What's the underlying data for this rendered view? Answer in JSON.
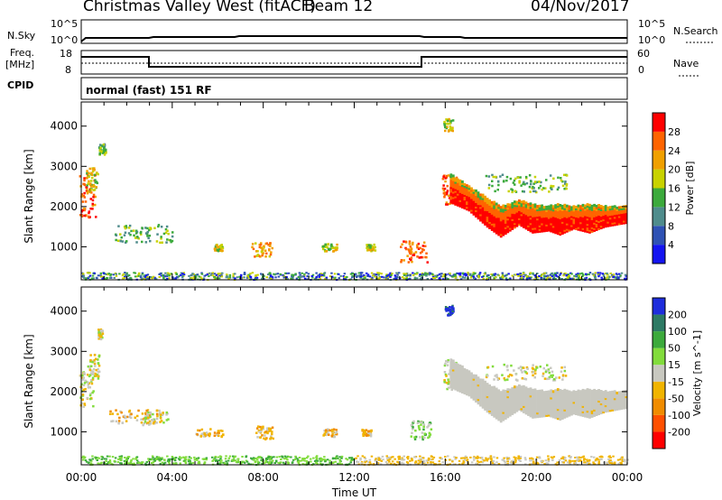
{
  "header": {
    "station": "Christmas Valley West (fitACF)",
    "beam": "Beam 12",
    "date": "04/Nov/2017"
  },
  "strips": {
    "nsky_label": "N.Sky",
    "nsky_ticks": [
      "10^5",
      "10^0"
    ],
    "nsearch_label": "N.Search",
    "freq_label": "Freq.",
    "freq_unit": "[MHz]",
    "freq_ticks": [
      "18",
      "8"
    ],
    "nave_label": "Nave",
    "nave_ticks": [
      "60",
      "0"
    ],
    "cpid_label": "CPID",
    "cpid_value": "normal (fast) 151 RF"
  },
  "chart_data": [
    {
      "type": "heatmap",
      "name": "power",
      "ylabel": "Slant Range [km]",
      "xlabel": "",
      "yticks": [
        1000,
        2000,
        3000,
        4000
      ],
      "ylim": [
        180,
        4600
      ],
      "xlim": [
        0,
        24
      ],
      "colorbar": {
        "label": "Power [dB]",
        "ticks": [
          "4",
          "8",
          "12",
          "16",
          "20",
          "24",
          "28"
        ]
      },
      "color_hex": [
        "#1414f0",
        "#2f52b4",
        "#4f8c8c",
        "#3caa3c",
        "#c8d200",
        "#f0a000",
        "#ff6400",
        "#ff0000"
      ],
      "blobs": [
        {
          "t": 0.25,
          "r": 2300,
          "dt": 0.35,
          "dr": 550,
          "c": 6
        },
        {
          "t": 0.45,
          "r": 2700,
          "dt": 0.25,
          "dr": 300,
          "c": 4
        },
        {
          "t": 0.9,
          "r": 3450,
          "dt": 0.15,
          "dr": 150,
          "c": 3
        },
        {
          "t": 2.7,
          "r": 1350,
          "dt": 1.3,
          "dr": 220,
          "c": 3
        },
        {
          "t": 7.9,
          "r": 950,
          "dt": 0.45,
          "dr": 170,
          "c": 5
        },
        {
          "t": 6.0,
          "r": 1000,
          "dt": 0.2,
          "dr": 80,
          "c": 4
        },
        {
          "t": 10.9,
          "r": 1000,
          "dt": 0.35,
          "dr": 100,
          "c": 4
        },
        {
          "t": 12.7,
          "r": 1000,
          "dt": 0.2,
          "dr": 80,
          "c": 4
        },
        {
          "t": 14.6,
          "r": 900,
          "dt": 0.6,
          "dr": 260,
          "c": 6
        },
        {
          "t": 16.1,
          "r": 4050,
          "dt": 0.2,
          "dr": 150,
          "c": 4
        },
        {
          "t": 16.2,
          "r": 2450,
          "dt": 0.35,
          "dr": 380,
          "c": 6
        },
        {
          "t": 19.5,
          "r": 2600,
          "dt": 1.8,
          "dr": 220,
          "c": 3
        }
      ],
      "band": {
        "t": [
          16.2,
          17.0,
          17.8,
          18.4,
          19.2,
          19.8,
          20.5,
          21.0,
          21.6,
          22.3,
          23.0,
          24.0
        ],
        "r_low": [
          2100,
          1900,
          1500,
          1250,
          1550,
          1350,
          1400,
          1300,
          1450,
          1350,
          1500,
          1600
        ],
        "r_high": [
          2800,
          2500,
          2200,
          2000,
          2150,
          2050,
          2000,
          2050,
          2000,
          2050,
          2000,
          2000
        ]
      }
    },
    {
      "type": "heatmap",
      "name": "velocity",
      "ylabel": "Slant Range [km]",
      "xlabel": "Time UT",
      "yticks": [
        1000,
        2000,
        3000,
        4000
      ],
      "xticks": [
        "00:00",
        "04:00",
        "08:00",
        "12:00",
        "16:00",
        "20:00",
        "00:00"
      ],
      "ylim": [
        180,
        4600
      ],
      "xlim": [
        0,
        24
      ],
      "colorbar": {
        "label": "Velocity [m s^-1]",
        "ticks": [
          "200",
          "100",
          "50",
          "15",
          "-15",
          "-50",
          "-100",
          "-200"
        ]
      },
      "color_hex": [
        "#1e2ddc",
        "#2d7a64",
        "#3caa3c",
        "#82dc3c",
        "#c8c8c0",
        "#f0b400",
        "#f08c00",
        "#ff5000",
        "#ff0000"
      ],
      "blobs": [
        {
          "t": 0.2,
          "r": 2100,
          "dt": 0.3,
          "dr": 450,
          "c": 4
        },
        {
          "t": 0.5,
          "r": 2650,
          "dt": 0.25,
          "dr": 300,
          "c": 4
        },
        {
          "t": 0.8,
          "r": 3450,
          "dt": 0.1,
          "dr": 120,
          "c": 4
        },
        {
          "t": 2.3,
          "r": 1400,
          "dt": 1.1,
          "dr": 180,
          "c": 5
        },
        {
          "t": 3.2,
          "r": 1350,
          "dt": 0.6,
          "dr": 160,
          "c": 4
        },
        {
          "t": 5.6,
          "r": 1000,
          "dt": 0.6,
          "dr": 100,
          "c": 5
        },
        {
          "t": 8.0,
          "r": 1000,
          "dt": 0.4,
          "dr": 160,
          "c": 5
        },
        {
          "t": 10.9,
          "r": 1000,
          "dt": 0.3,
          "dr": 100,
          "c": 5
        },
        {
          "t": 12.5,
          "r": 1000,
          "dt": 0.25,
          "dr": 80,
          "c": 5
        },
        {
          "t": 14.9,
          "r": 1050,
          "dt": 0.45,
          "dr": 240,
          "c": 3
        },
        {
          "t": 16.15,
          "r": 4050,
          "dt": 0.18,
          "dr": 130,
          "c": 0
        },
        {
          "t": 16.2,
          "r": 2450,
          "dt": 0.3,
          "dr": 380,
          "c": 4
        },
        {
          "t": 19.5,
          "r": 2500,
          "dt": 1.8,
          "dr": 200,
          "c": 4
        }
      ],
      "band": {
        "t": [
          16.2,
          17.0,
          17.8,
          18.4,
          19.2,
          19.8,
          20.5,
          21.0,
          21.6,
          22.3,
          23.0,
          24.0
        ],
        "r_low": [
          2100,
          1900,
          1500,
          1250,
          1550,
          1350,
          1400,
          1300,
          1450,
          1350,
          1500,
          1600
        ],
        "r_high": [
          2800,
          2500,
          2200,
          2000,
          2150,
          2050,
          2000,
          2050,
          2000,
          2050,
          2000,
          2000
        ]
      }
    }
  ]
}
